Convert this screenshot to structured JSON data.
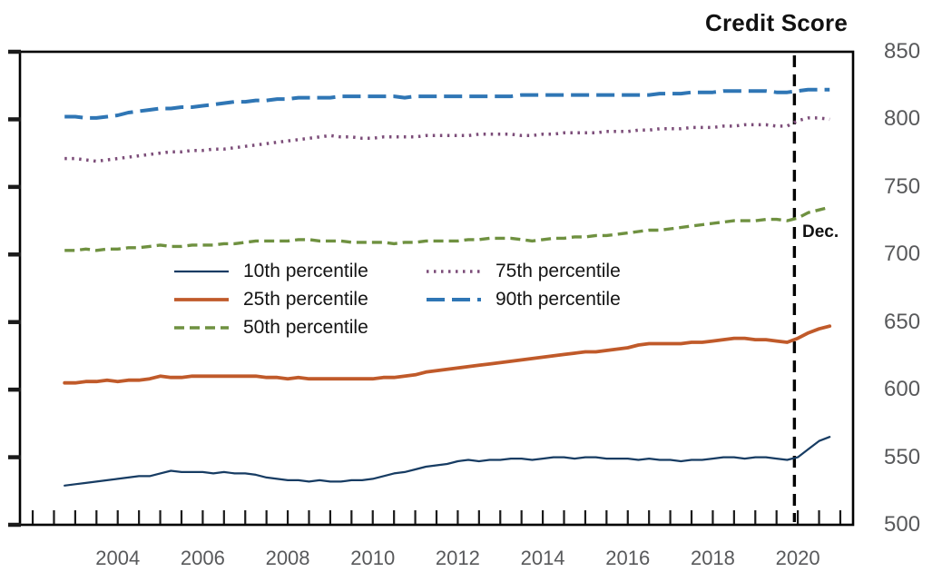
{
  "chart_data": {
    "type": "line",
    "title": "Credit Score",
    "xlabel": "",
    "ylabel": "Credit Score",
    "ylim": [
      500,
      850
    ],
    "y_ticks": [
      500,
      550,
      600,
      650,
      700,
      750,
      800,
      850
    ],
    "x_tick_labels": [
      "2004",
      "2006",
      "2008",
      "2010",
      "2012",
      "2014",
      "2016",
      "2018",
      "2020"
    ],
    "x_start": 2002.75,
    "x_step": 0.25,
    "grid": "off",
    "legend_position": "center-left-inside",
    "vline": {
      "x": 2019.92,
      "label": "Dec."
    },
    "frame_color": "#000000",
    "tick_label_color": "#58595b",
    "series": [
      {
        "name": "10th percentile",
        "color": "#173c63",
        "width": 2.2,
        "dash": null,
        "values": [
          529,
          530,
          531,
          532,
          533,
          534,
          535,
          536,
          536,
          538,
          540,
          539,
          539,
          539,
          538,
          539,
          538,
          538,
          537,
          535,
          534,
          533,
          533,
          532,
          533,
          532,
          532,
          533,
          533,
          534,
          536,
          538,
          539,
          541,
          543,
          544,
          545,
          547,
          548,
          547,
          548,
          548,
          549,
          549,
          548,
          549,
          550,
          550,
          549,
          550,
          550,
          549,
          549,
          549,
          548,
          549,
          548,
          548,
          547,
          548,
          548,
          549,
          550,
          550,
          549,
          550,
          550,
          549,
          548,
          550,
          556,
          562,
          565
        ]
      },
      {
        "name": "25th percentile",
        "color": "#c05a2a",
        "width": 3.8,
        "dash": null,
        "values": [
          605,
          605,
          606,
          606,
          607,
          606,
          607,
          607,
          608,
          610,
          609,
          609,
          610,
          610,
          610,
          610,
          610,
          610,
          610,
          609,
          609,
          608,
          609,
          608,
          608,
          608,
          608,
          608,
          608,
          608,
          609,
          609,
          610,
          611,
          613,
          614,
          615,
          616,
          617,
          618,
          619,
          620,
          621,
          622,
          623,
          624,
          625,
          626,
          627,
          628,
          628,
          629,
          630,
          631,
          633,
          634,
          634,
          634,
          634,
          635,
          635,
          636,
          637,
          638,
          638,
          637,
          637,
          636,
          635,
          638,
          642,
          645,
          647
        ]
      },
      {
        "name": "50th percentile",
        "color": "#6f9140",
        "width": 3.4,
        "dash": "11 6",
        "values": [
          703,
          703,
          704,
          703,
          704,
          704,
          705,
          705,
          706,
          707,
          706,
          706,
          707,
          707,
          707,
          708,
          708,
          709,
          710,
          710,
          710,
          710,
          711,
          711,
          710,
          710,
          710,
          709,
          709,
          709,
          709,
          708,
          709,
          709,
          710,
          710,
          710,
          710,
          711,
          711,
          712,
          712,
          712,
          711,
          710,
          711,
          712,
          712,
          713,
          713,
          714,
          714,
          715,
          716,
          717,
          718,
          718,
          719,
          720,
          721,
          722,
          723,
          724,
          725,
          725,
          725,
          726,
          726,
          725,
          727,
          731,
          733,
          735
        ]
      },
      {
        "name": "75th percentile",
        "color": "#7c4d79",
        "width": 3.5,
        "dash": "2.5 5.5",
        "values": [
          771,
          771,
          770,
          769,
          770,
          771,
          772,
          773,
          774,
          775,
          776,
          776,
          777,
          777,
          778,
          778,
          779,
          780,
          781,
          782,
          783,
          784,
          785,
          786,
          787,
          788,
          787,
          787,
          786,
          786,
          787,
          787,
          787,
          787,
          788,
          788,
          788,
          788,
          788,
          789,
          789,
          789,
          789,
          788,
          788,
          789,
          789,
          790,
          790,
          790,
          790,
          791,
          791,
          791,
          792,
          792,
          793,
          793,
          793,
          794,
          794,
          794,
          795,
          795,
          796,
          796,
          796,
          795,
          795,
          799,
          801,
          801,
          800
        ]
      },
      {
        "name": "90th percentile",
        "color": "#2f76b5",
        "width": 4,
        "dash": "20 8",
        "values": [
          802,
          802,
          801,
          801,
          802,
          803,
          805,
          806,
          807,
          808,
          808,
          809,
          809,
          810,
          811,
          812,
          813,
          813,
          814,
          814,
          815,
          815,
          816,
          816,
          816,
          816,
          817,
          817,
          817,
          817,
          817,
          817,
          816,
          817,
          817,
          817,
          817,
          817,
          817,
          817,
          817,
          817,
          817,
          818,
          818,
          818,
          818,
          818,
          818,
          818,
          818,
          818,
          818,
          818,
          818,
          818,
          819,
          819,
          819,
          820,
          820,
          820,
          821,
          821,
          821,
          821,
          821,
          820,
          820,
          821,
          822,
          822,
          822
        ]
      }
    ]
  }
}
